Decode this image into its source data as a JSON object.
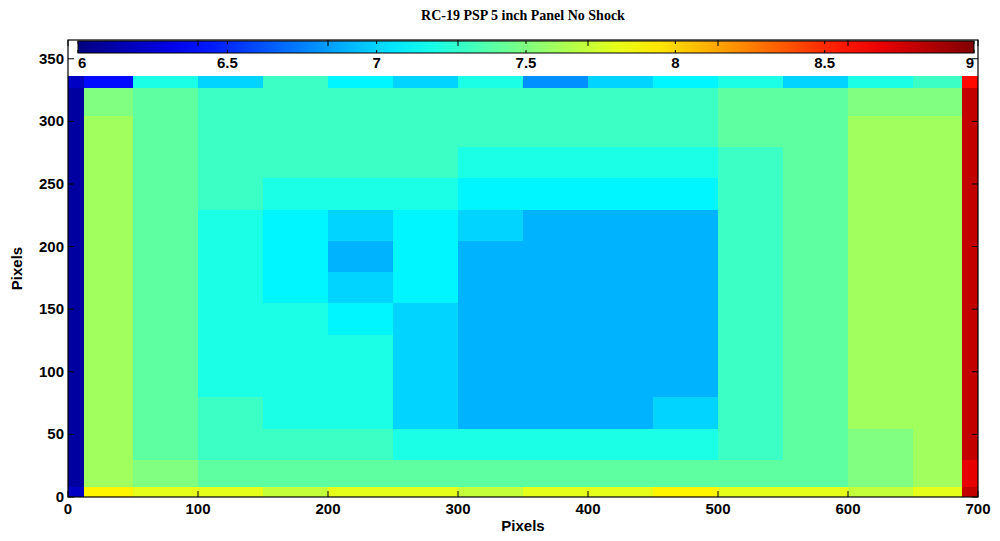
{
  "chart_data": {
    "type": "heatmap",
    "title": "RC-19 PSP 5 inch Panel No Shock",
    "x_label": "Pixels",
    "y_label": "Pixels",
    "xlim": [
      0,
      700
    ],
    "ylim": [
      0,
      365
    ],
    "xticks": [
      0,
      100,
      200,
      300,
      400,
      500,
      600,
      700
    ],
    "yticks": [
      0,
      50,
      100,
      150,
      200,
      250,
      300,
      350
    ],
    "x_edges": [
      0,
      12,
      50,
      100,
      150,
      200,
      250,
      300,
      350,
      400,
      450,
      500,
      550,
      600,
      650,
      688,
      700
    ],
    "y_edges": [
      0,
      8,
      30,
      55,
      80,
      105,
      130,
      155,
      180,
      205,
      230,
      255,
      280,
      305,
      327,
      336
    ],
    "cells": [
      [
        6.2,
        7.9,
        7.8,
        7.8,
        7.7,
        7.8,
        7.8,
        7.7,
        7.8,
        7.8,
        7.9,
        7.8,
        7.8,
        7.7,
        7.8,
        8.8
      ],
      [
        6.1,
        7.6,
        7.5,
        7.4,
        7.4,
        7.4,
        7.4,
        7.4,
        7.4,
        7.4,
        7.4,
        7.4,
        7.4,
        7.5,
        7.6,
        8.7
      ],
      [
        6.1,
        7.6,
        7.4,
        7.3,
        7.3,
        7.3,
        7.2,
        7.2,
        7.2,
        7.2,
        7.2,
        7.3,
        7.4,
        7.5,
        7.6,
        8.8
      ],
      [
        6.1,
        7.6,
        7.4,
        7.3,
        7.2,
        7.2,
        7.0,
        6.9,
        6.9,
        6.9,
        7.0,
        7.3,
        7.4,
        7.6,
        7.6,
        8.8
      ],
      [
        6.1,
        7.6,
        7.4,
        7.2,
        7.2,
        7.2,
        7.0,
        6.9,
        6.9,
        6.9,
        6.9,
        7.3,
        7.4,
        7.6,
        7.6,
        8.8
      ],
      [
        6.1,
        7.6,
        7.4,
        7.2,
        7.2,
        7.2,
        7.0,
        6.9,
        6.9,
        6.9,
        6.9,
        7.3,
        7.4,
        7.6,
        7.6,
        8.8
      ],
      [
        6.1,
        7.6,
        7.4,
        7.2,
        7.2,
        7.1,
        7.0,
        6.9,
        6.9,
        6.9,
        6.9,
        7.3,
        7.4,
        7.6,
        7.6,
        8.8
      ],
      [
        6.1,
        7.6,
        7.4,
        7.2,
        7.1,
        7.0,
        7.1,
        6.9,
        6.9,
        6.9,
        6.9,
        7.3,
        7.4,
        7.6,
        7.6,
        8.8
      ],
      [
        6.1,
        7.6,
        7.4,
        7.2,
        7.1,
        6.9,
        7.1,
        6.9,
        6.9,
        6.9,
        6.9,
        7.3,
        7.4,
        7.6,
        7.6,
        8.8
      ],
      [
        6.1,
        7.6,
        7.4,
        7.2,
        7.1,
        7.0,
        7.1,
        7.0,
        6.9,
        6.9,
        6.9,
        7.3,
        7.4,
        7.6,
        7.6,
        8.8
      ],
      [
        6.1,
        7.6,
        7.4,
        7.3,
        7.2,
        7.2,
        7.2,
        7.1,
        7.1,
        7.1,
        7.1,
        7.3,
        7.4,
        7.6,
        7.6,
        8.8
      ],
      [
        6.1,
        7.6,
        7.4,
        7.3,
        7.3,
        7.3,
        7.3,
        7.2,
        7.2,
        7.2,
        7.2,
        7.3,
        7.4,
        7.6,
        7.6,
        8.8
      ],
      [
        6.1,
        7.6,
        7.4,
        7.3,
        7.3,
        7.3,
        7.3,
        7.3,
        7.3,
        7.3,
        7.3,
        7.4,
        7.4,
        7.6,
        7.6,
        8.8
      ],
      [
        6.1,
        7.5,
        7.4,
        7.3,
        7.3,
        7.3,
        7.3,
        7.3,
        7.3,
        7.3,
        7.3,
        7.4,
        7.4,
        7.5,
        7.5,
        8.8
      ],
      [
        6.2,
        6.4,
        7.2,
        7.0,
        7.3,
        7.1,
        7.0,
        7.2,
        6.8,
        7.0,
        7.1,
        7.2,
        7.0,
        7.2,
        7.3,
        8.6
      ]
    ],
    "colorbar_range": [
      6,
      9
    ],
    "colorbar_ticks": [
      6,
      6.5,
      7,
      7.5,
      8,
      8.5,
      9
    ]
  }
}
